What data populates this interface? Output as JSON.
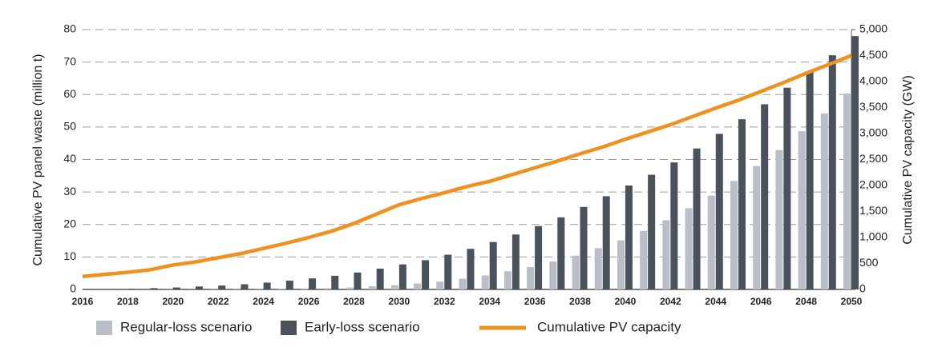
{
  "chart_data": {
    "type": "bar",
    "y_label": "Cumulative PV panel waste (million t)",
    "y2_label": "Cumulative PV capacity (GW)",
    "categories": [
      "2016",
      null,
      "2018",
      null,
      "2020",
      null,
      "2022",
      null,
      "2024",
      null,
      "2026",
      null,
      "2028",
      null,
      "2030",
      null,
      "2032",
      null,
      "2034",
      null,
      "2036",
      null,
      "2038",
      null,
      "2040",
      null,
      "2042",
      null,
      "2044",
      null,
      "2046",
      null,
      "2048",
      null,
      "2050"
    ],
    "series": [
      {
        "name": "Regular-loss scenario",
        "type": "bar",
        "color": "#b9bec8",
        "values": [
          0,
          0,
          0,
          0,
          0.05,
          0.05,
          0.1,
          0.1,
          0.15,
          0.2,
          0.3,
          0.4,
          0.6,
          1.0,
          1.3,
          1.8,
          2.4,
          3.3,
          4.3,
          5.6,
          6.9,
          8.6,
          10.4,
          12.7,
          15.1,
          18.0,
          21.3,
          25.0,
          28.9,
          33.4,
          38.0,
          42.9,
          48.7,
          54.2,
          60.3
        ]
      },
      {
        "name": "Early-loss scenario",
        "type": "bar",
        "color": "#4a525c",
        "values": [
          0.05,
          0.1,
          0.2,
          0.4,
          0.6,
          0.9,
          1.2,
          1.6,
          2.1,
          2.7,
          3.4,
          4.2,
          5.2,
          6.4,
          7.7,
          9.0,
          10.7,
          12.5,
          14.6,
          16.9,
          19.5,
          22.2,
          25.4,
          28.7,
          32.0,
          35.3,
          39.1,
          43.4,
          47.9,
          52.4,
          57.0,
          62.1,
          67.0,
          72.1,
          78.0
        ]
      },
      {
        "name": "Cumulative PV capacity",
        "type": "line",
        "axis": "y2",
        "color": "#f0901e",
        "values": [
          250,
          290,
          330,
          380,
          470,
          530,
          610,
          690,
          790,
          890,
          1000,
          1120,
          1270,
          1450,
          1630,
          1750,
          1860,
          1980,
          2080,
          2210,
          2340,
          2470,
          2610,
          2740,
          2890,
          3030,
          3170,
          3330,
          3490,
          3640,
          3810,
          3980,
          4160,
          4330,
          4500
        ]
      }
    ],
    "ylim": [
      0,
      80
    ],
    "yticks": [
      0,
      10,
      20,
      30,
      40,
      50,
      60,
      70,
      80
    ],
    "y2lim": [
      0,
      5000
    ],
    "y2ticks": [
      0,
      500,
      {
        "value": 1000,
        "label": "1,000"
      },
      {
        "value": 1500,
        "label": "1,500"
      },
      {
        "value": 2000,
        "label": "2,000"
      },
      {
        "value": 2500,
        "label": "2,500"
      },
      {
        "value": 3000,
        "label": "3,000"
      },
      {
        "value": 3500,
        "label": "3,500"
      },
      {
        "value": 4000,
        "label": "4,000"
      },
      {
        "value": 4500,
        "label": "4,500"
      },
      {
        "value": 5000,
        "label": "5,000"
      }
    ],
    "grid": true,
    "legend": "bottom"
  }
}
